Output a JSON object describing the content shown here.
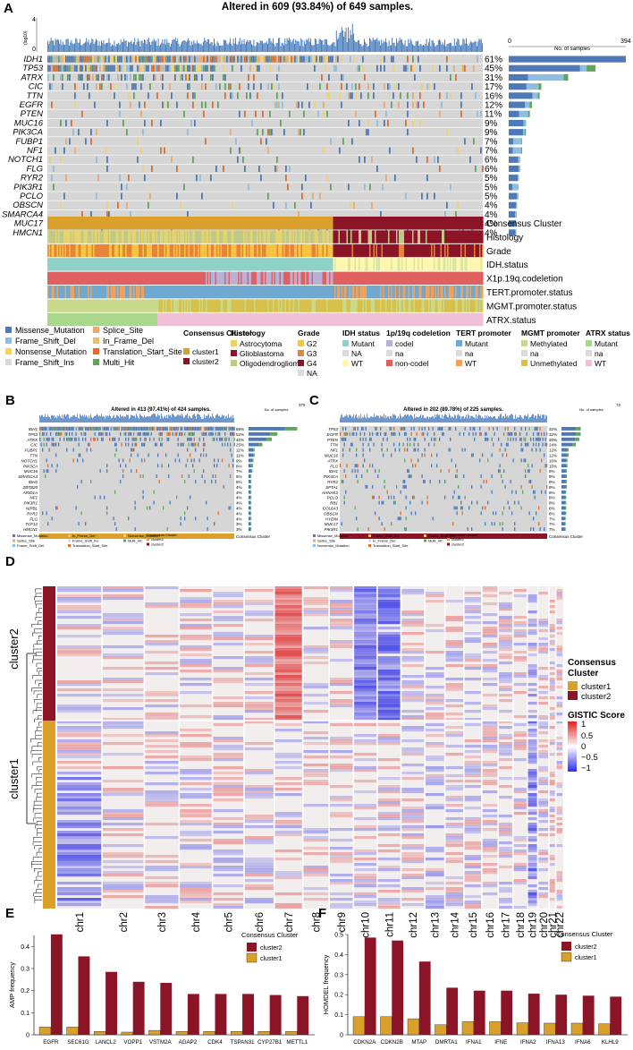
{
  "panelA": {
    "letter": "A",
    "title": "Altered in 609 (93.84%) of 649 samples.",
    "tmb_label": "(log10)",
    "tmb_max": "4",
    "tmb_min": "0",
    "count_axis_min": "0",
    "count_axis_max": "394",
    "count_axis_label": "No. of samples",
    "genes": [
      {
        "name": "IDH1",
        "pct": "61%",
        "bar": {
          "missense": 394,
          "other": 0,
          "multi": 0
        }
      },
      {
        "name": "TP53",
        "pct": "45%",
        "bar": {
          "missense": 240,
          "other": 22,
          "multi": 30
        }
      },
      {
        "name": "ATRX",
        "pct": "31%",
        "bar": {
          "missense": 65,
          "other": 120,
          "multi": 15
        }
      },
      {
        "name": "CIC",
        "pct": "17%",
        "bar": {
          "missense": 60,
          "other": 40,
          "multi": 10
        }
      },
      {
        "name": "TTN",
        "pct": "16%",
        "bar": {
          "missense": 80,
          "other": 18,
          "multi": 6
        }
      },
      {
        "name": "EGFR",
        "pct": "12%",
        "bar": {
          "missense": 55,
          "other": 15,
          "multi": 8
        }
      },
      {
        "name": "PTEN",
        "pct": "11%",
        "bar": {
          "missense": 35,
          "other": 30,
          "multi": 6
        }
      },
      {
        "name": "MUC16",
        "pct": "9%",
        "bar": {
          "missense": 50,
          "other": 6,
          "multi": 2
        }
      },
      {
        "name": "PIK3CA",
        "pct": "9%",
        "bar": {
          "missense": 48,
          "other": 6,
          "multi": 4
        }
      },
      {
        "name": "FUBP1",
        "pct": "7%",
        "bar": {
          "missense": 15,
          "other": 28,
          "multi": 2
        }
      },
      {
        "name": "NF1",
        "pct": "7%",
        "bar": {
          "missense": 14,
          "other": 28,
          "multi": 3
        }
      },
      {
        "name": "NOTCH1",
        "pct": "6%",
        "bar": {
          "missense": 32,
          "other": 6,
          "multi": 1
        }
      },
      {
        "name": "FLG",
        "pct": "6%",
        "bar": {
          "missense": 34,
          "other": 4,
          "multi": 1
        }
      },
      {
        "name": "RYR2",
        "pct": "5%",
        "bar": {
          "missense": 30,
          "other": 3,
          "multi": 1
        }
      },
      {
        "name": "PIK3R1",
        "pct": "5%",
        "bar": {
          "missense": 12,
          "other": 20,
          "multi": 1
        }
      },
      {
        "name": "PCLO",
        "pct": "5%",
        "bar": {
          "missense": 28,
          "other": 4,
          "multi": 1
        }
      },
      {
        "name": "OBSCN",
        "pct": "4%",
        "bar": {
          "missense": 24,
          "other": 3,
          "multi": 1
        }
      },
      {
        "name": "SMARCA4",
        "pct": "4%",
        "bar": {
          "missense": 22,
          "other": 4,
          "multi": 1
        }
      },
      {
        "name": "MUC17",
        "pct": "4%",
        "bar": {
          "missense": 24,
          "other": 2,
          "multi": 0
        }
      },
      {
        "name": "HMCN1",
        "pct": "4%",
        "bar": {
          "missense": 23,
          "other": 3,
          "multi": 0
        }
      }
    ],
    "annotation_tracks": [
      "Consensus Cluster",
      "Histology",
      "Grade",
      "IDH.status",
      "X1p.19q.codeletion",
      "TERT.promoter.status",
      "MGMT.promoter.status",
      "ATRX.status"
    ],
    "legend_mutation": [
      "Missense_Mutation",
      "Splice_Site",
      "Frame_Shift_Del",
      "In_Frame_Del",
      "Nonsense_Mutation",
      "Translation_Start_Site",
      "Frame_Shift_Ins",
      "Multi_Hit"
    ],
    "legend_groups": [
      {
        "title": "Consensus Cluster",
        "items": [
          "cluster1",
          "cluster2"
        ]
      },
      {
        "title": "Histology",
        "items": [
          "Astrocytoma",
          "Glioblastoma",
          "Oligodendroglioma"
        ]
      },
      {
        "title": "Grade",
        "items": [
          "G2",
          "G3",
          "G4",
          "NA"
        ]
      },
      {
        "title": "IDH status",
        "items": [
          "Mutant",
          "NA",
          "WT"
        ]
      },
      {
        "title": "1p/19q codeletion",
        "items": [
          "codel",
          "na",
          "non-codel"
        ]
      },
      {
        "title": "TERT promoter",
        "items": [
          "Mutant",
          "na",
          "WT"
        ]
      },
      {
        "title": "MGMT promoter",
        "items": [
          "Methylated",
          "na",
          "Unmethylated"
        ]
      },
      {
        "title": "ATRX status",
        "items": [
          "Mutant",
          "na",
          "WT"
        ]
      }
    ]
  },
  "panelB": {
    "letter": "B",
    "title": "Altered in 413 (97.41%) of 424 samples.",
    "axis_max": "375",
    "axis_label": "No. of samples",
    "genes": [
      "IDH1",
      "TP53",
      "ATRX",
      "CIC",
      "FUBP1",
      "TTN",
      "NOTCH1",
      "PIK3CA",
      "MUC16",
      "SMARCA4",
      "IDH2",
      "ZBTB20",
      "ARID1A",
      "NF1",
      "PIK3R1",
      "NIPBL",
      "RYR2",
      "FLG",
      "TCF12",
      "HMCN1"
    ],
    "pcts": [
      "88%",
      "52%",
      "42%",
      "25%",
      "11%",
      "11%",
      "9%",
      "8%",
      "7%",
      "5%",
      "5%",
      "4%",
      "4%",
      "4%",
      "4%",
      "4%",
      "4%",
      "4%",
      "3%",
      "3%"
    ],
    "bar_label": "Consensus Cluster",
    "legend": [
      "Missense_Mutation",
      "Splice_Site",
      "Frame_Shift_Del",
      "In_Frame_Del",
      "Frame_Shift_Ins",
      "Translation_Start_Site",
      "Nonsense_Mutation",
      "Multi_Hit"
    ],
    "legend_cluster_title": "Consensus Cluster",
    "legend_clusters": [
      "cluster1",
      "cluster2"
    ]
  },
  "panelC": {
    "letter": "C",
    "title": "Altered in 202 (89.78%) of 225 samples.",
    "axis_max": "72",
    "axis_label": "No. of samples",
    "genes": [
      "TP53",
      "EGFR",
      "PTEN",
      "TTN",
      "NF1",
      "MUC16",
      "ATRX",
      "FLG",
      "IDH1",
      "PIK3CA",
      "RYR2",
      "SPTA1",
      "AHNAK2",
      "PCLO",
      "RB1",
      "COL6A3",
      "OBSCN",
      "HYDIN",
      "MUC17",
      "PIK3R1"
    ],
    "pcts": [
      "32%",
      "32%",
      "30%",
      "24%",
      "12%",
      "12%",
      "10%",
      "10%",
      "9%",
      "9%",
      "9%",
      "9%",
      "8%",
      "8%",
      "8%",
      "8%",
      "8%",
      "7%",
      "7%",
      "7%"
    ],
    "bar_label": "Consensus Cluster",
    "legend": [
      "Missense_Mutation",
      "Splice_Site",
      "Nonsense_Mutation",
      "Frame_Shift_Ins",
      "In_Frame_Del",
      "Translation_Start_Site",
      "Frame_Shift_Del",
      "Multi_Hit"
    ],
    "legend_cluster_title": "Consensus Cluster",
    "legend_clusters": [
      "cluster1",
      "cluster2"
    ]
  },
  "panelD": {
    "letter": "D",
    "row_labels": [
      "cluster2",
      "cluster1"
    ],
    "chromosomes": [
      "chr1",
      "chr2",
      "chr3",
      "chr4",
      "chr5",
      "chr6",
      "chr7",
      "chr8",
      "chr9",
      "chr10",
      "chr11",
      "chr12",
      "chr13",
      "chr14",
      "chr15",
      "chr16",
      "chr17",
      "chr18",
      "chr19",
      "chr20",
      "chr21",
      "chr22"
    ],
    "legend_cluster_title_1": "Consensus",
    "legend_cluster_title_2": "Cluster",
    "legend_clusters": [
      "cluster1",
      "cluster2"
    ],
    "legend_score_title": "GISTIC Score",
    "legend_score_ticks": [
      "1",
      "0.5",
      "0",
      "−0.5",
      "−1"
    ]
  },
  "colors": {
    "missense": "#4e79b8",
    "splice": "#f0a868",
    "frameshift_del": "#8fbfe0",
    "inframe_del": "#e7c266",
    "nonsense": "#f4d35e",
    "translation": "#e06c2b",
    "frameshift_ins": "#d9d9d9",
    "multi": "#5fa65a",
    "cluster1": "#d9a02c",
    "cluster2": "#8b1426",
    "grid_bg": "#d6d6d6",
    "amp": "#d62a2a",
    "del": "#3c3ce6"
  },
  "chart_data": [
    {
      "type": "bar",
      "panel": "E",
      "ylabel": "AMP frequency",
      "ylim": [
        0,
        0.45
      ],
      "yticks": [
        "0",
        "0.1",
        "0.2",
        "0.3",
        "0.4"
      ],
      "legend_title": "Consensus Cluster",
      "categories": [
        "EGFR",
        "SEC61G",
        "LANCL2",
        "VOPP1",
        "VSTM2A",
        "AGAP2",
        "CDK4",
        "TSPAN31",
        "CYP27B1",
        "METTL1"
      ],
      "series": [
        {
          "name": "cluster2",
          "values": [
            0.455,
            0.355,
            0.285,
            0.24,
            0.235,
            0.185,
            0.185,
            0.185,
            0.18,
            0.175
          ]
        },
        {
          "name": "cluster1",
          "values": [
            0.035,
            0.035,
            0.015,
            0.012,
            0.02,
            0.015,
            0.015,
            0.015,
            0.015,
            0.015
          ]
        }
      ]
    },
    {
      "type": "bar",
      "panel": "F",
      "ylabel": "HOMDEL frequency",
      "ylim": [
        0,
        0.5
      ],
      "yticks": [
        "0",
        "0.1",
        "0.2",
        "0.3",
        "0.4",
        "0.5"
      ],
      "legend_title": "Consensus Cluster",
      "categories": [
        "CDKN2A",
        "CDKN2B",
        "MTAP",
        "DMRTA1",
        "IFNA1",
        "IFNE",
        "IFNA2",
        "IFNA13",
        "IFNA6",
        "KLHL9"
      ],
      "series": [
        {
          "name": "cluster2",
          "values": [
            0.485,
            0.47,
            0.365,
            0.235,
            0.22,
            0.22,
            0.205,
            0.2,
            0.195,
            0.19
          ]
        },
        {
          "name": "cluster1",
          "values": [
            0.09,
            0.09,
            0.08,
            0.05,
            0.065,
            0.065,
            0.06,
            0.058,
            0.058,
            0.055
          ]
        }
      ]
    }
  ]
}
